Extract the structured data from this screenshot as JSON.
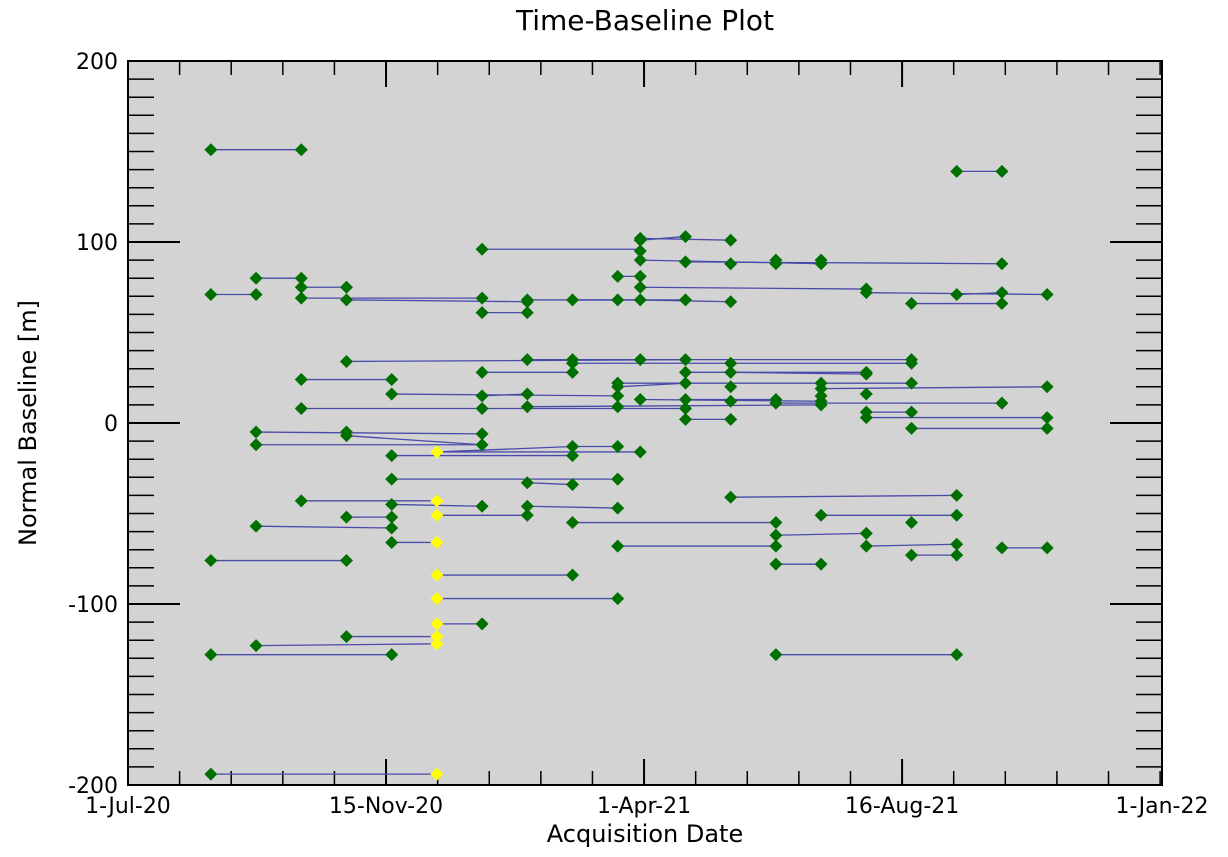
{
  "chart_data": {
    "type": "scatter",
    "title": "Time-Baseline Plot",
    "xlabel": "Acquisition Date",
    "ylabel": "Normal Baseline [m]",
    "xlim": [
      0,
      549
    ],
    "ylim": [
      -200,
      200
    ],
    "x_unit": "days since 1-Jul-20",
    "xticks": [
      {
        "value": 0,
        "label": "1-Jul-20"
      },
      {
        "value": 137,
        "label": "15-Nov-20"
      },
      {
        "value": 274,
        "label": "1-Apr-21"
      },
      {
        "value": 411,
        "label": "16-Aug-21"
      },
      {
        "value": 549,
        "label": "1-Jan-22"
      }
    ],
    "yticks": [
      {
        "value": 200,
        "label": "200"
      },
      {
        "value": 100,
        "label": "100"
      },
      {
        "value": 0,
        "label": "0"
      },
      {
        "value": -100,
        "label": "-100"
      },
      {
        "value": -200,
        "label": "-200"
      }
    ],
    "colors": {
      "background": "#d3d3d3",
      "point": "#007000",
      "reference": "#ffff00",
      "line": "#4a4aaa"
    },
    "points": [
      {
        "x": 44,
        "y": 151
      },
      {
        "x": 92,
        "y": 151
      },
      {
        "x": 44,
        "y": 71
      },
      {
        "x": 68,
        "y": 71
      },
      {
        "x": 68,
        "y": 80
      },
      {
        "x": 92,
        "y": 80
      },
      {
        "x": 92,
        "y": 75
      },
      {
        "x": 116,
        "y": 75
      },
      {
        "x": 92,
        "y": 69
      },
      {
        "x": 116,
        "y": 68
      },
      {
        "x": 188,
        "y": 69
      },
      {
        "x": 212,
        "y": 67
      },
      {
        "x": 212,
        "y": 68
      },
      {
        "x": 236,
        "y": 68
      },
      {
        "x": 188,
        "y": 61
      },
      {
        "x": 212,
        "y": 61
      },
      {
        "x": 188,
        "y": 96
      },
      {
        "x": 260,
        "y": 68
      },
      {
        "x": 260,
        "y": 81
      },
      {
        "x": 272,
        "y": 81
      },
      {
        "x": 272,
        "y": 68
      },
      {
        "x": 272,
        "y": 75
      },
      {
        "x": 272,
        "y": 102
      },
      {
        "x": 272,
        "y": 101
      },
      {
        "x": 272,
        "y": 95
      },
      {
        "x": 272,
        "y": 90
      },
      {
        "x": 296,
        "y": 103
      },
      {
        "x": 296,
        "y": 89
      },
      {
        "x": 296,
        "y": 68
      },
      {
        "x": 320,
        "y": 101
      },
      {
        "x": 320,
        "y": 88
      },
      {
        "x": 320,
        "y": 67
      },
      {
        "x": 344,
        "y": 90
      },
      {
        "x": 344,
        "y": 88
      },
      {
        "x": 368,
        "y": 90
      },
      {
        "x": 368,
        "y": 88
      },
      {
        "x": 392,
        "y": 74
      },
      {
        "x": 392,
        "y": 72
      },
      {
        "x": 416,
        "y": 66
      },
      {
        "x": 440,
        "y": 71
      },
      {
        "x": 464,
        "y": 72
      },
      {
        "x": 464,
        "y": 66
      },
      {
        "x": 464,
        "y": 88
      },
      {
        "x": 488,
        "y": 71
      },
      {
        "x": 440,
        "y": 139
      },
      {
        "x": 464,
        "y": 139
      },
      {
        "x": 116,
        "y": 34
      },
      {
        "x": 212,
        "y": 35
      },
      {
        "x": 236,
        "y": 35
      },
      {
        "x": 236,
        "y": 33
      },
      {
        "x": 272,
        "y": 35
      },
      {
        "x": 296,
        "y": 35
      },
      {
        "x": 320,
        "y": 33
      },
      {
        "x": 416,
        "y": 35
      },
      {
        "x": 416,
        "y": 33
      },
      {
        "x": 92,
        "y": 24
      },
      {
        "x": 140,
        "y": 24
      },
      {
        "x": 188,
        "y": 28
      },
      {
        "x": 236,
        "y": 28
      },
      {
        "x": 260,
        "y": 22
      },
      {
        "x": 260,
        "y": 20
      },
      {
        "x": 296,
        "y": 22
      },
      {
        "x": 296,
        "y": 28
      },
      {
        "x": 320,
        "y": 28
      },
      {
        "x": 320,
        "y": 20
      },
      {
        "x": 368,
        "y": 22
      },
      {
        "x": 368,
        "y": 19
      },
      {
        "x": 392,
        "y": 28
      },
      {
        "x": 392,
        "y": 27
      },
      {
        "x": 416,
        "y": 22
      },
      {
        "x": 488,
        "y": 20
      },
      {
        "x": 140,
        "y": 16
      },
      {
        "x": 188,
        "y": 15
      },
      {
        "x": 212,
        "y": 16
      },
      {
        "x": 260,
        "y": 15
      },
      {
        "x": 272,
        "y": 13
      },
      {
        "x": 296,
        "y": 13
      },
      {
        "x": 320,
        "y": 12
      },
      {
        "x": 344,
        "y": 13
      },
      {
        "x": 344,
        "y": 11
      },
      {
        "x": 368,
        "y": 15
      },
      {
        "x": 368,
        "y": 12
      },
      {
        "x": 368,
        "y": 10
      },
      {
        "x": 392,
        "y": 16
      },
      {
        "x": 464,
        "y": 11
      },
      {
        "x": 92,
        "y": 8
      },
      {
        "x": 188,
        "y": 8
      },
      {
        "x": 212,
        "y": 9
      },
      {
        "x": 260,
        "y": 9
      },
      {
        "x": 296,
        "y": 8
      },
      {
        "x": 296,
        "y": 2
      },
      {
        "x": 320,
        "y": 2
      },
      {
        "x": 392,
        "y": 6
      },
      {
        "x": 392,
        "y": 3
      },
      {
        "x": 416,
        "y": 6
      },
      {
        "x": 416,
        "y": -3
      },
      {
        "x": 488,
        "y": 3
      },
      {
        "x": 488,
        "y": -3
      },
      {
        "x": 68,
        "y": -5
      },
      {
        "x": 68,
        "y": -12
      },
      {
        "x": 116,
        "y": -5
      },
      {
        "x": 116,
        "y": -7
      },
      {
        "x": 188,
        "y": -6
      },
      {
        "x": 188,
        "y": -12
      },
      {
        "x": 140,
        "y": -18
      },
      {
        "x": 236,
        "y": -13
      },
      {
        "x": 236,
        "y": -18
      },
      {
        "x": 260,
        "y": -13
      },
      {
        "x": 272,
        "y": -16
      },
      {
        "x": 140,
        "y": -31
      },
      {
        "x": 212,
        "y": -33
      },
      {
        "x": 236,
        "y": -34
      },
      {
        "x": 260,
        "y": -31
      },
      {
        "x": 92,
        "y": -43
      },
      {
        "x": 140,
        "y": -45
      },
      {
        "x": 188,
        "y": -46
      },
      {
        "x": 212,
        "y": -46
      },
      {
        "x": 212,
        "y": -51
      },
      {
        "x": 260,
        "y": -47
      },
      {
        "x": 116,
        "y": -52
      },
      {
        "x": 140,
        "y": -52
      },
      {
        "x": 68,
        "y": -57
      },
      {
        "x": 140,
        "y": -58
      },
      {
        "x": 140,
        "y": -66
      },
      {
        "x": 236,
        "y": -55
      },
      {
        "x": 260,
        "y": -68
      },
      {
        "x": 320,
        "y": -41
      },
      {
        "x": 344,
        "y": -55
      },
      {
        "x": 344,
        "y": -62
      },
      {
        "x": 344,
        "y": -68
      },
      {
        "x": 344,
        "y": -78
      },
      {
        "x": 368,
        "y": -51
      },
      {
        "x": 368,
        "y": -78
      },
      {
        "x": 392,
        "y": -61
      },
      {
        "x": 392,
        "y": -68
      },
      {
        "x": 416,
        "y": -55
      },
      {
        "x": 416,
        "y": -73
      },
      {
        "x": 440,
        "y": -40
      },
      {
        "x": 440,
        "y": -51
      },
      {
        "x": 440,
        "y": -67
      },
      {
        "x": 440,
        "y": -73
      },
      {
        "x": 464,
        "y": -69
      },
      {
        "x": 488,
        "y": -69
      },
      {
        "x": 44,
        "y": -76
      },
      {
        "x": 116,
        "y": -76
      },
      {
        "x": 236,
        "y": -84
      },
      {
        "x": 260,
        "y": -97
      },
      {
        "x": 188,
        "y": -111
      },
      {
        "x": 116,
        "y": -118
      },
      {
        "x": 68,
        "y": -123
      },
      {
        "x": 44,
        "y": -128
      },
      {
        "x": 140,
        "y": -128
      },
      {
        "x": 344,
        "y": -128
      },
      {
        "x": 440,
        "y": -128
      },
      {
        "x": 44,
        "y": -194
      }
    ],
    "reference_points": [
      {
        "x": 164,
        "y": -16
      },
      {
        "x": 164,
        "y": -43
      },
      {
        "x": 164,
        "y": -51
      },
      {
        "x": 164,
        "y": -66
      },
      {
        "x": 164,
        "y": -84
      },
      {
        "x": 164,
        "y": -97
      },
      {
        "x": 164,
        "y": -111
      },
      {
        "x": 164,
        "y": -118
      },
      {
        "x": 164,
        "y": -122
      },
      {
        "x": 164,
        "y": -194
      }
    ],
    "connections": [
      [
        44,
        151,
        92,
        151
      ],
      [
        44,
        71,
        68,
        71
      ],
      [
        68,
        80,
        92,
        80
      ],
      [
        92,
        75,
        116,
        75
      ],
      [
        92,
        69,
        188,
        69
      ],
      [
        116,
        68,
        212,
        67
      ],
      [
        188,
        61,
        212,
        61
      ],
      [
        188,
        96,
        272,
        96
      ],
      [
        212,
        68,
        272,
        68
      ],
      [
        236,
        68,
        296,
        68
      ],
      [
        260,
        81,
        272,
        81
      ],
      [
        272,
        102,
        320,
        101
      ],
      [
        272,
        101,
        296,
        103
      ],
      [
        272,
        90,
        368,
        88
      ],
      [
        296,
        89,
        464,
        88
      ],
      [
        272,
        75,
        392,
        74
      ],
      [
        392,
        72,
        488,
        71
      ],
      [
        416,
        66,
        464,
        66
      ],
      [
        440,
        71,
        464,
        72
      ],
      [
        272,
        68,
        320,
        67
      ],
      [
        440,
        139,
        464,
        139
      ],
      [
        116,
        34,
        296,
        35
      ],
      [
        212,
        35,
        416,
        35
      ],
      [
        236,
        33,
        320,
        33
      ],
      [
        320,
        33,
        416,
        33
      ],
      [
        92,
        24,
        140,
        24
      ],
      [
        188,
        28,
        236,
        28
      ],
      [
        296,
        28,
        392,
        28
      ],
      [
        320,
        28,
        392,
        27
      ],
      [
        260,
        22,
        416,
        22
      ],
      [
        260,
        20,
        296,
        22
      ],
      [
        368,
        19,
        488,
        20
      ],
      [
        140,
        16,
        260,
        15
      ],
      [
        188,
        15,
        212,
        16
      ],
      [
        272,
        13,
        368,
        12
      ],
      [
        296,
        13,
        344,
        13
      ],
      [
        344,
        11,
        464,
        11
      ],
      [
        92,
        8,
        296,
        8
      ],
      [
        212,
        9,
        368,
        10
      ],
      [
        296,
        2,
        320,
        2
      ],
      [
        392,
        3,
        488,
        3
      ],
      [
        392,
        6,
        416,
        6
      ],
      [
        416,
        -3,
        488,
        -3
      ],
      [
        68,
        -5,
        188,
        -6
      ],
      [
        68,
        -12,
        188,
        -12
      ],
      [
        116,
        -7,
        188,
        -12
      ],
      [
        140,
        -18,
        236,
        -18
      ],
      [
        164,
        -16,
        236,
        -13
      ],
      [
        236,
        -13,
        260,
        -13
      ],
      [
        164,
        -16,
        272,
        -16
      ],
      [
        140,
        -31,
        260,
        -31
      ],
      [
        212,
        -33,
        236,
        -34
      ],
      [
        92,
        -43,
        164,
        -43
      ],
      [
        140,
        -45,
        188,
        -46
      ],
      [
        164,
        -51,
        212,
        -51
      ],
      [
        212,
        -46,
        260,
        -47
      ],
      [
        116,
        -52,
        140,
        -52
      ],
      [
        68,
        -57,
        140,
        -58
      ],
      [
        140,
        -66,
        164,
        -66
      ],
      [
        236,
        -55,
        344,
        -55
      ],
      [
        260,
        -68,
        344,
        -68
      ],
      [
        344,
        -62,
        392,
        -61
      ],
      [
        344,
        -78,
        368,
        -78
      ],
      [
        368,
        -51,
        440,
        -51
      ],
      [
        320,
        -41,
        440,
        -40
      ],
      [
        392,
        -68,
        440,
        -67
      ],
      [
        416,
        -73,
        440,
        -73
      ],
      [
        464,
        -69,
        488,
        -69
      ],
      [
        44,
        -76,
        116,
        -76
      ],
      [
        164,
        -84,
        236,
        -84
      ],
      [
        164,
        -97,
        260,
        -97
      ],
      [
        164,
        -111,
        188,
        -111
      ],
      [
        116,
        -118,
        164,
        -118
      ],
      [
        68,
        -123,
        164,
        -122
      ],
      [
        44,
        -128,
        140,
        -128
      ],
      [
        344,
        -128,
        440,
        -128
      ],
      [
        44,
        -194,
        164,
        -194
      ]
    ]
  }
}
